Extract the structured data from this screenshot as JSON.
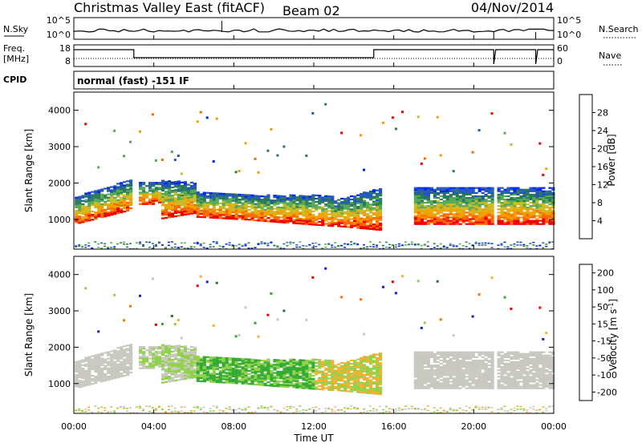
{
  "header": {
    "station": "Christmas Valley East",
    "fit": "(fitACF)",
    "beam": "Beam 02",
    "date": "04/Nov/2014"
  },
  "strips": {
    "nsky_label": "N.Sky",
    "nsky_ticks": [
      "10^5",
      "10^0"
    ],
    "nsearch_label": "N.Search",
    "nsearch_ticks": [
      "10^5",
      "10^0"
    ],
    "freq_label_1": "Freq.",
    "freq_label_2": "[MHz]",
    "freq_ticks": [
      "18",
      "8"
    ],
    "nave_label": "Nave",
    "nave_ticks": [
      "60",
      "0"
    ],
    "cpid_label": "CPID",
    "cpid_value": "normal (fast) -151 IF"
  },
  "chart_data": [
    {
      "type": "heatmap",
      "name": "power-panel",
      "xlabel": "Time UT",
      "ylabel": "Slant Range [km]",
      "xlim": [
        0,
        24
      ],
      "ylim": [
        180,
        4500
      ],
      "yticks": [
        1000,
        2000,
        3000,
        4000
      ],
      "colorbar": {
        "label": "Power [dB]",
        "ticks": [
          "4",
          "8",
          "12",
          "16",
          "20",
          "24",
          "28"
        ],
        "range": [
          0,
          30
        ],
        "colors": [
          "#0022ee",
          "#2255bb",
          "#2a7a55",
          "#55aa55",
          "#ccbb22",
          "#f0a000",
          "#ff6600",
          "#ee0000"
        ]
      }
    },
    {
      "type": "heatmap",
      "name": "velocity-panel",
      "xlabel": "Time UT",
      "ylabel": "Slant Range [km]",
      "xlim": [
        0,
        24
      ],
      "ylim": [
        180,
        4500
      ],
      "yticks": [
        1000,
        2000,
        3000,
        4000
      ],
      "xticks": [
        "00:00",
        "04:00",
        "08:00",
        "12:00",
        "16:00",
        "20:00",
        "00:00"
      ],
      "colorbar": {
        "label": "Velocity [m s^-1]",
        "ticks": [
          "200",
          "100",
          "50",
          "15",
          "-15",
          "-50",
          "-100",
          "-200"
        ],
        "colors": [
          "#1a1aee",
          "#2d6b3f",
          "#33aa33",
          "#8fd24a",
          "#c8c8c0",
          "#f0b030",
          "#ff7000",
          "#ee0000"
        ]
      }
    }
  ]
}
